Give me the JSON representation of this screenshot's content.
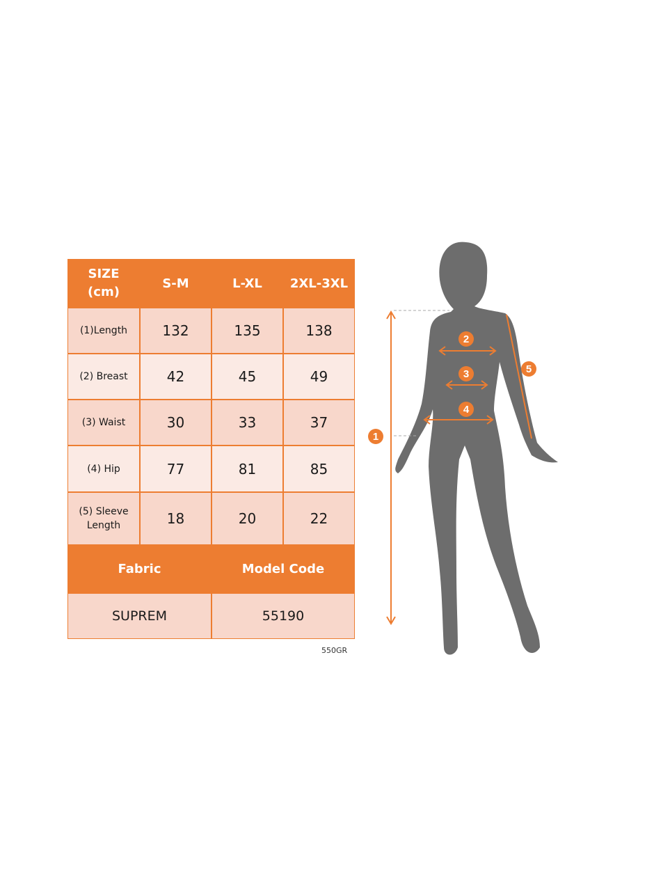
{
  "table": {
    "header": [
      "SIZE\n(cm)",
      "S-M",
      "L-XL",
      "2XL-3XL"
    ],
    "rows": [
      {
        "label": "(1)Length",
        "values": [
          "132",
          "135",
          "138"
        ]
      },
      {
        "label": "(2) Breast",
        "values": [
          "42",
          "45",
          "49"
        ]
      },
      {
        "label": "(3) Waist",
        "values": [
          "30",
          "33",
          "37"
        ]
      },
      {
        "label": "(4) Hip",
        "values": [
          "77",
          "81",
          "85"
        ]
      },
      {
        "label": "(5) Sleeve Length",
        "values": [
          "18",
          "20",
          "22"
        ]
      }
    ],
    "info_header": [
      "Fabric",
      "Model Code"
    ],
    "info_values": [
      "SUPREM",
      "55190"
    ]
  },
  "fabric_weight": "550GR",
  "figure": {
    "markers": [
      "1",
      "2",
      "3",
      "4",
      "5"
    ]
  },
  "colors": {
    "accent": "#ED7D31",
    "silhouette": "#6D6D6D",
    "cell_dark": "#F8D7CB",
    "cell_light": "#FBEAE4"
  }
}
